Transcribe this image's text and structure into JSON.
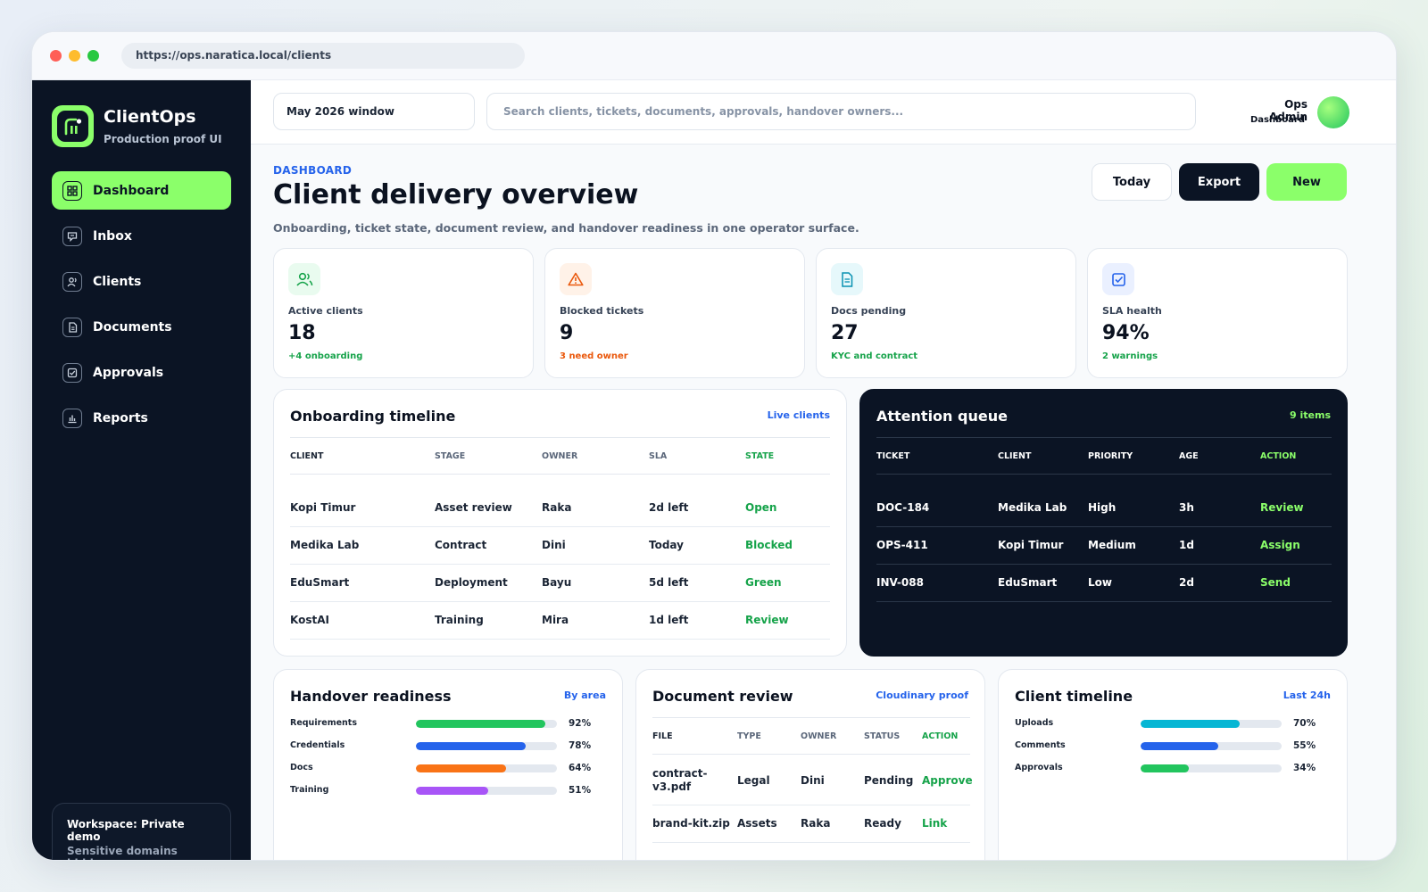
{
  "browser": {
    "url": "https://ops.naratica.local/clients"
  },
  "brand": {
    "name": "ClientOps",
    "subtitle": "Production proof UI"
  },
  "sidebar": {
    "items": [
      {
        "label": "Dashboard",
        "icon": "dashboard-icon",
        "active": true
      },
      {
        "label": "Inbox",
        "icon": "inbox-icon",
        "active": false
      },
      {
        "label": "Clients",
        "icon": "users-icon",
        "active": false
      },
      {
        "label": "Documents",
        "icon": "document-icon",
        "active": false
      },
      {
        "label": "Approvals",
        "icon": "check-square-icon",
        "active": false
      },
      {
        "label": "Reports",
        "icon": "bar-chart-icon",
        "active": false
      }
    ],
    "workspace": {
      "title": "Workspace: Private demo",
      "subtitle": "Sensitive domains hidden"
    }
  },
  "topbar": {
    "window_select": "May 2026 window",
    "search_placeholder": "Search clients, tickets, documents, approvals, handover owners...",
    "user_name": "Ops Admin",
    "user_role": "Dashboard"
  },
  "header": {
    "breadcrumb": "DASHBOARD",
    "title": "Client delivery overview",
    "subtitle": "Onboarding, ticket state, document review, and handover readiness in one operator surface.",
    "buttons": {
      "today": "Today",
      "export": "Export",
      "new": "New"
    }
  },
  "stats": [
    {
      "label": "Active clients",
      "value": "18",
      "note": "+4 onboarding",
      "note_color": "#16a34a",
      "icon": "users-icon",
      "icon_bg": "#e9fbef",
      "icon_color": "#16a34a"
    },
    {
      "label": "Blocked tickets",
      "value": "9",
      "note": "3 need owner",
      "note_color": "#ea580c",
      "icon": "warning-icon",
      "icon_bg": "#fff2e8",
      "icon_color": "#ea580c"
    },
    {
      "label": "Docs pending",
      "value": "27",
      "note": "KYC and contract",
      "note_color": "#16a34a",
      "icon": "document-icon",
      "icon_bg": "#e6f8fb",
      "icon_color": "#0891b2"
    },
    {
      "label": "SLA health",
      "value": "94%",
      "note": "2 warnings",
      "note_color": "#16a34a",
      "icon": "check-square-icon",
      "icon_bg": "#eaf0ff",
      "icon_color": "#2563eb"
    }
  ],
  "onboarding": {
    "title": "Onboarding timeline",
    "link": "Live clients",
    "columns": [
      "CLIENT",
      "STAGE",
      "OWNER",
      "SLA",
      "STATE"
    ],
    "rows": [
      [
        "Kopi Timur",
        "Asset review",
        "Raka",
        "2d left",
        "Open"
      ],
      [
        "Medika Lab",
        "Contract",
        "Dini",
        "Today",
        "Blocked"
      ],
      [
        "EduSmart",
        "Deployment",
        "Bayu",
        "5d left",
        "Green"
      ],
      [
        "KostAI",
        "Training",
        "Mira",
        "1d left",
        "Review"
      ]
    ]
  },
  "attention": {
    "title": "Attention queue",
    "count": "9 items",
    "columns": [
      "TICKET",
      "CLIENT",
      "PRIORITY",
      "AGE",
      "ACTION"
    ],
    "rows": [
      [
        "DOC-184",
        "Medika Lab",
        "High",
        "3h",
        "Review"
      ],
      [
        "OPS-411",
        "Kopi Timur",
        "Medium",
        "1d",
        "Assign"
      ],
      [
        "INV-088",
        "EduSmart",
        "Low",
        "2d",
        "Send"
      ]
    ]
  },
  "handover": {
    "title": "Handover readiness",
    "link": "By area",
    "bars": [
      {
        "label": "Requirements",
        "value": 92,
        "pct": "92%",
        "color": "#22c55e"
      },
      {
        "label": "Credentials",
        "value": 78,
        "pct": "78%",
        "color": "#2563eb"
      },
      {
        "label": "Docs",
        "value": 64,
        "pct": "64%",
        "color": "#f97316"
      },
      {
        "label": "Training",
        "value": 51,
        "pct": "51%",
        "color": "#a855f7"
      }
    ]
  },
  "documents": {
    "title": "Document review",
    "link": "Cloudinary proof",
    "columns": [
      "FILE",
      "TYPE",
      "OWNER",
      "STATUS",
      "ACTION"
    ],
    "rows": [
      [
        "contract-v3.pdf",
        "Legal",
        "Dini",
        "Pending",
        "Approve"
      ],
      [
        "brand-kit.zip",
        "Assets",
        "Raka",
        "Ready",
        "Link"
      ]
    ]
  },
  "client_timeline": {
    "title": "Client timeline",
    "link": "Last 24h",
    "bars": [
      {
        "label": "Uploads",
        "value": 70,
        "pct": "70%",
        "color": "#06b6d4"
      },
      {
        "label": "Comments",
        "value": 55,
        "pct": "55%",
        "color": "#2563eb"
      },
      {
        "label": "Approvals",
        "value": 34,
        "pct": "34%",
        "color": "#22c55e"
      }
    ]
  },
  "colors": {
    "accent": "#8bff6a",
    "sidebar_bg": "#0b1424",
    "link": "#2563eb",
    "state_green": "#16a34a"
  }
}
